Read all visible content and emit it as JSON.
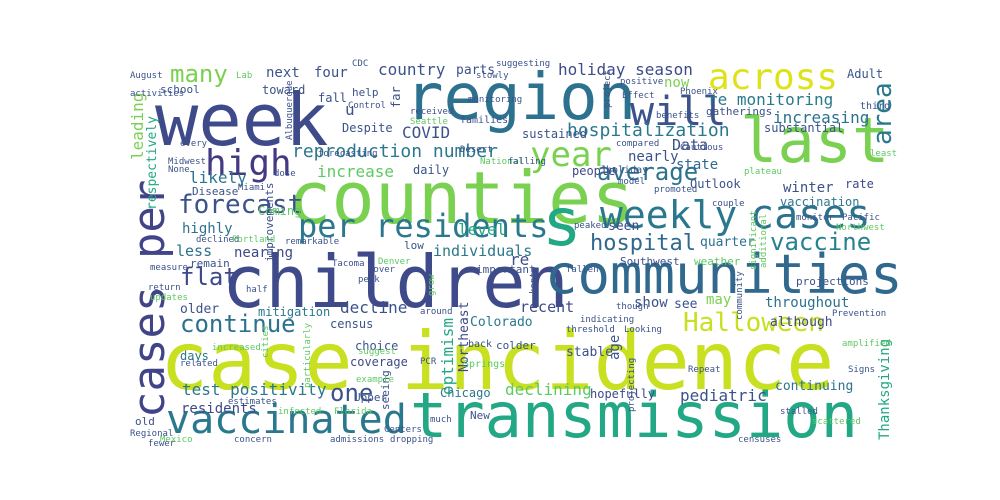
{
  "words": [
    {
      "text": "case incidence",
      "color": "#c8e020"
    },
    {
      "text": "children",
      "color": "#3e4a89"
    },
    {
      "text": "transmission",
      "color": "#22a884"
    },
    {
      "text": "counties",
      "color": "#7ad151"
    },
    {
      "text": "week",
      "color": "#3e4a89"
    },
    {
      "text": "region",
      "color": "#2c728e"
    },
    {
      "text": "communities",
      "color": "#31688e"
    },
    {
      "text": "last",
      "color": "#7ad151"
    },
    {
      "text": "cases per",
      "color": "#414487"
    },
    {
      "text": "vaccinated",
      "color": "#2a788e"
    },
    {
      "text": "weekly",
      "color": "#2a788e"
    },
    {
      "text": "cases",
      "color": "#2c728e"
    },
    {
      "text": "per residents",
      "color": "#2a788e"
    },
    {
      "text": "s",
      "color": "#22a884"
    },
    {
      "text": "across",
      "color": "#dde318"
    },
    {
      "text": "will",
      "color": "#3b528b"
    },
    {
      "text": "year",
      "color": "#7ad151"
    },
    {
      "text": "high",
      "color": "#443983"
    },
    {
      "text": "Halloween",
      "color": "#c8e020"
    },
    {
      "text": "average",
      "color": "#2c728e"
    },
    {
      "text": "forecast",
      "color": "#3b528b"
    },
    {
      "text": "area",
      "color": "#2a788e"
    },
    {
      "text": "vaccine",
      "color": "#26828e"
    },
    {
      "text": "many",
      "color": "#7ad151"
    },
    {
      "text": "continue",
      "color": "#2c728e"
    },
    {
      "text": "flat",
      "color": "#3e4a89"
    },
    {
      "text": "one",
      "color": "#3b528b"
    },
    {
      "text": "hospital",
      "color": "#31688e"
    },
    {
      "text": "reproduction number",
      "color": "#2a788e"
    },
    {
      "text": "hospitalization",
      "color": "#2a788e"
    },
    {
      "text": "increase",
      "color": "#5ec962"
    },
    {
      "text": "test positivity",
      "color": "#2a788e"
    },
    {
      "text": "holiday season",
      "color": "#3e4a89"
    },
    {
      "text": "re monitoring",
      "color": "#2a788e"
    },
    {
      "text": "country",
      "color": "#3b528b"
    },
    {
      "text": "COVID",
      "color": "#3b528b"
    },
    {
      "text": "increasing",
      "color": "#2c728e"
    },
    {
      "text": "declining",
      "color": "#5ec962"
    },
    {
      "text": "level",
      "color": "#22a884"
    },
    {
      "text": "likely",
      "color": "#2a788e"
    },
    {
      "text": "highly",
      "color": "#2c728e"
    },
    {
      "text": "residents",
      "color": "#3e4a89"
    },
    {
      "text": "optimism",
      "color": "#22a884"
    },
    {
      "text": "Thanksgiving",
      "color": "#22a884"
    },
    {
      "text": "leading",
      "color": "#7ad151"
    },
    {
      "text": "respectively",
      "color": "#22a884"
    },
    {
      "text": "throughout",
      "color": "#2c728e"
    },
    {
      "text": "decline",
      "color": "#3b528b"
    },
    {
      "text": "individuals",
      "color": "#2a788e"
    },
    {
      "text": "Colorado",
      "color": "#2a788e"
    },
    {
      "text": "recent",
      "color": "#3e4a89"
    },
    {
      "text": "Northeast",
      "color": "#3e4a89"
    },
    {
      "text": "re",
      "color": "#3b528b"
    },
    {
      "text": "Data",
      "color": "#3b528b"
    },
    {
      "text": "state",
      "color": "#31688e"
    },
    {
      "text": "winter",
      "color": "#3b528b"
    },
    {
      "text": "rate",
      "color": "#3e4a89"
    },
    {
      "text": "vaccination",
      "color": "#2a788e"
    },
    {
      "text": "nearly",
      "color": "#3b528b"
    },
    {
      "text": "seen",
      "color": "#3e4a89"
    },
    {
      "text": "quarter",
      "color": "#2c728e"
    },
    {
      "text": "less",
      "color": "#2c728e"
    },
    {
      "text": "nearing",
      "color": "#3e4a89"
    },
    {
      "text": "older",
      "color": "#3b528b"
    },
    {
      "text": "mitigation",
      "color": "#2a788e"
    },
    {
      "text": "census",
      "color": "#3b528b"
    },
    {
      "text": "coverage",
      "color": "#3e4a89"
    },
    {
      "text": "stable",
      "color": "#3b528b"
    },
    {
      "text": "age",
      "color": "#3b528b"
    },
    {
      "text": "pediatric",
      "color": "#3b528b"
    },
    {
      "text": "continuing",
      "color": "#2c728e"
    },
    {
      "text": "although",
      "color": "#3e4a89"
    },
    {
      "text": "hopefully",
      "color": "#3e4a89"
    },
    {
      "text": "Chicago",
      "color": "#2a788e"
    },
    {
      "text": "Upper",
      "color": "#3b528b"
    },
    {
      "text": "seeing",
      "color": "#3b528b"
    },
    {
      "text": "days",
      "color": "#2a788e"
    },
    {
      "text": "choice",
      "color": "#3b528b"
    },
    {
      "text": "sustained",
      "color": "#3b528b"
    },
    {
      "text": "daily",
      "color": "#3b528b"
    },
    {
      "text": "people",
      "color": "#3e4a89"
    },
    {
      "text": "holiday",
      "color": "#3b528b"
    },
    {
      "text": "Outlook",
      "color": "#3b528b"
    },
    {
      "text": "show",
      "color": "#3b528b"
    },
    {
      "text": "see",
      "color": "#3b528b"
    },
    {
      "text": "may",
      "color": "#7ad151"
    },
    {
      "text": "now",
      "color": "#7ad151"
    },
    {
      "text": "parts",
      "color": "#3b528b"
    },
    {
      "text": "four",
      "color": "#3b528b"
    },
    {
      "text": "next",
      "color": "#3b528b"
    },
    {
      "text": "toward",
      "color": "#3b528b"
    },
    {
      "text": "school",
      "color": "#3b528b"
    },
    {
      "text": "fall",
      "color": "#3b528b"
    },
    {
      "text": "u",
      "color": "#3b528b"
    },
    {
      "text": "far",
      "color": "#3b528b"
    },
    {
      "text": "Despite",
      "color": "#3b528b"
    },
    {
      "text": "help",
      "color": "#3b528b"
    },
    {
      "text": "families",
      "color": "#3b528b"
    },
    {
      "text": "Adult",
      "color": "#3b528b"
    },
    {
      "text": "third",
      "color": "#3b528b"
    },
    {
      "text": "substantial",
      "color": "#3b528b"
    },
    {
      "text": "gatherings",
      "color": "#3b528b"
    },
    {
      "text": "positive",
      "color": "#3b528b"
    },
    {
      "text": "Phoenix",
      "color": "#3b528b"
    },
    {
      "text": "Coming",
      "color": "#5ec962"
    },
    {
      "text": "Disease",
      "color": "#3b528b"
    },
    {
      "text": "improvements",
      "color": "#3b528b"
    },
    {
      "text": "remain",
      "color": "#3b528b"
    },
    {
      "text": "low",
      "color": "#3b528b"
    },
    {
      "text": "important",
      "color": "#3b528b"
    },
    {
      "text": "Southwest",
      "color": "#3b528b"
    },
    {
      "text": "weather",
      "color": "#5ec962"
    },
    {
      "text": "projections",
      "color": "#3b528b"
    },
    {
      "text": "colder",
      "color": "#3b528b"
    },
    {
      "text": "back",
      "color": "#3b528b"
    },
    {
      "text": "PCR",
      "color": "#3b528b"
    },
    {
      "text": "Springs",
      "color": "#5ec962"
    },
    {
      "text": "New",
      "color": "#3b528b"
    },
    {
      "text": "much",
      "color": "#3b528b"
    },
    {
      "text": "Centers",
      "color": "#3b528b"
    },
    {
      "text": "dropping",
      "color": "#3b528b"
    },
    {
      "text": "Florida",
      "color": "#5ec962"
    },
    {
      "text": "infected",
      "color": "#5ec962"
    },
    {
      "text": "Mexico",
      "color": "#5ec962"
    },
    {
      "text": "Regional",
      "color": "#3b528b"
    },
    {
      "text": "concern",
      "color": "#3b528b"
    },
    {
      "text": "admissions",
      "color": "#3b528b"
    },
    {
      "text": "Midwest",
      "color": "#3b528b"
    },
    {
      "text": "None",
      "color": "#3b528b"
    },
    {
      "text": "declined",
      "color": "#3b528b"
    },
    {
      "text": "Portland",
      "color": "#5ec962"
    },
    {
      "text": "Miami",
      "color": "#3b528b"
    },
    {
      "text": "Tacoma",
      "color": "#3b528b"
    },
    {
      "text": "Denver",
      "color": "#5ec962"
    },
    {
      "text": "peak",
      "color": "#3b528b"
    },
    {
      "text": "hover",
      "color": "#3b528b"
    },
    {
      "text": "remarkable",
      "color": "#3b528b"
    },
    {
      "text": "measure",
      "color": "#3b528b"
    },
    {
      "text": "return",
      "color": "#3b528b"
    },
    {
      "text": "updates",
      "color": "#5ec962"
    },
    {
      "text": "old",
      "color": "#3b528b"
    },
    {
      "text": "half",
      "color": "#3b528b"
    },
    {
      "text": "related",
      "color": "#3b528b"
    },
    {
      "text": "increased",
      "color": "#5ec962"
    },
    {
      "text": "suggest",
      "color": "#5ec962"
    },
    {
      "text": "particularly",
      "color": "#5ec962"
    },
    {
      "text": "cities",
      "color": "#5ec962"
    },
    {
      "text": "example",
      "color": "#5ec962"
    },
    {
      "text": "estimates",
      "color": "#3b528b"
    },
    {
      "text": "around",
      "color": "#3b528b"
    },
    {
      "text": "grow",
      "color": "#5ec962"
    },
    {
      "text": "kept",
      "color": "#3b528b"
    },
    {
      "text": "fallen",
      "color": "#3b528b"
    },
    {
      "text": "peaked",
      "color": "#3b528b"
    },
    {
      "text": "indicating",
      "color": "#3b528b"
    },
    {
      "text": "threshold",
      "color": "#3b528b"
    },
    {
      "text": "Looking",
      "color": "#3b528b"
    },
    {
      "text": "projecting",
      "color": "#3b528b"
    },
    {
      "text": "though",
      "color": "#3b528b"
    },
    {
      "text": "Repeat",
      "color": "#3b528b"
    },
    {
      "text": "stalled",
      "color": "#3b528b"
    },
    {
      "text": "censuses",
      "color": "#3b528b"
    },
    {
      "text": "scattered",
      "color": "#5ec962"
    },
    {
      "text": "Signs",
      "color": "#3b528b"
    },
    {
      "text": "fewer",
      "color": "#3b528b"
    },
    {
      "text": "amplified",
      "color": "#5ec962"
    },
    {
      "text": "Prevention",
      "color": "#3b528b"
    },
    {
      "text": "monitor",
      "color": "#3b528b"
    },
    {
      "text": "Pacific",
      "color": "#3b528b"
    },
    {
      "text": "Northwest",
      "color": "#5ec962"
    },
    {
      "text": "least",
      "color": "#5ec962"
    },
    {
      "text": "additional",
      "color": "#5ec962"
    },
    {
      "text": "community",
      "color": "#3b528b"
    },
    {
      "text": "significant",
      "color": "#5ec962"
    },
    {
      "text": "plateau",
      "color": "#5ec962"
    },
    {
      "text": "couple",
      "color": "#3b528b"
    },
    {
      "text": "promoted",
      "color": "#3b528b"
    },
    {
      "text": "model",
      "color": "#3b528b"
    },
    {
      "text": "Cautious",
      "color": "#3b528b"
    },
    {
      "text": "compared",
      "color": "#3b528b"
    },
    {
      "text": "Effect",
      "color": "#3b528b"
    },
    {
      "text": "benefits",
      "color": "#3b528b"
    },
    {
      "text": "project",
      "color": "#3b528b"
    },
    {
      "text": "slowly",
      "color": "#3b528b"
    },
    {
      "text": "suggesting",
      "color": "#3b528b"
    },
    {
      "text": "CDC",
      "color": "#3b528b"
    },
    {
      "text": "Control",
      "color": "#3b528b"
    },
    {
      "text": "received",
      "color": "#3b528b"
    },
    {
      "text": "monitoring",
      "color": "#3b528b"
    },
    {
      "text": "Seattle",
      "color": "#5ec962"
    },
    {
      "text": "Albuquerque",
      "color": "#3b528b"
    },
    {
      "text": "Desert",
      "color": "#3b528b"
    },
    {
      "text": "National",
      "color": "#5ec962"
    },
    {
      "text": "falling",
      "color": "#3b528b"
    },
    {
      "text": "forecasting",
      "color": "#3b528b"
    },
    {
      "text": "dose",
      "color": "#3b528b"
    },
    {
      "text": "every",
      "color": "#3b528b"
    },
    {
      "text": "activities",
      "color": "#3b528b"
    },
    {
      "text": "August",
      "color": "#3b528b"
    },
    {
      "text": "Lab",
      "color": "#5ec962"
    }
  ]
}
